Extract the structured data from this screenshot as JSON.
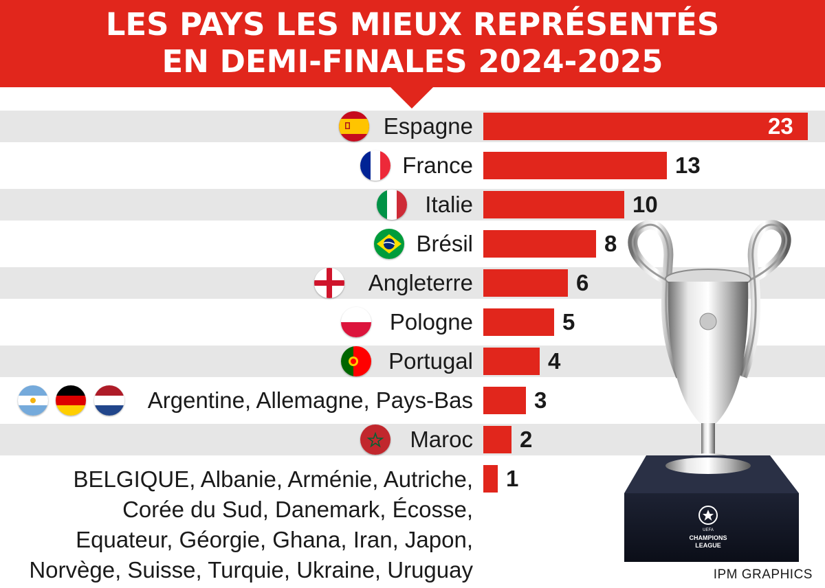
{
  "header": {
    "title_line1": "LES PAYS LES MIEUX REPRÉSENTÉS",
    "title_line2": "EN DEMI-FINALES 2024-2025",
    "color": "#e1261c"
  },
  "chart_data": {
    "type": "bar",
    "orientation": "horizontal",
    "categories": [
      "Espagne",
      "France",
      "Italie",
      "Brésil",
      "Angleterre",
      "Pologne",
      "Portugal",
      "Argentine, Allemagne, Pays-Bas",
      "Maroc",
      "BELGIQUE, Albanie, Arménie, Autriche, Corée du Sud,  Danemark, Écosse, Equateur, Géorgie, Ghana, Iran, Japon, Norvège, Suisse, Turquie, Ukraine, Uruguay"
    ],
    "values": [
      23,
      13,
      10,
      8,
      6,
      5,
      4,
      3,
      2,
      1
    ],
    "bar_color": "#e1261c",
    "grid": false
  },
  "rows": [
    {
      "label": "Espagne",
      "value": "23",
      "flags": [
        "spain-flag-icon"
      ]
    },
    {
      "label": "France",
      "value": "13",
      "flags": [
        "france-flag-icon"
      ]
    },
    {
      "label": "Italie",
      "value": "10",
      "flags": [
        "italy-flag-icon"
      ]
    },
    {
      "label": "Brésil",
      "value": "8",
      "flags": [
        "brazil-flag-icon"
      ]
    },
    {
      "label": "Angleterre",
      "value": "6",
      "flags": [
        "england-flag-icon"
      ]
    },
    {
      "label": "Pologne",
      "value": "5",
      "flags": [
        "poland-flag-icon"
      ]
    },
    {
      "label": "Portugal",
      "value": "4",
      "flags": [
        "portugal-flag-icon"
      ]
    },
    {
      "label": "Argentine, Allemagne, Pays-Bas",
      "value": "3",
      "flags": [
        "argentina-flag-icon",
        "germany-flag-icon",
        "netherlands-flag-icon"
      ]
    },
    {
      "label": "Maroc",
      "value": "2",
      "flags": [
        "morocco-flag-icon"
      ]
    },
    {
      "label": "",
      "value": "1",
      "flags": []
    }
  ],
  "others": {
    "line1": "BELGIQUE, Albanie, Arménie, Autriche,",
    "line2": "Corée du Sud,  Danemark, Écosse,",
    "line3": "Equateur, Géorgie, Ghana, Iran, Japon,",
    "line4": "Norvège, Suisse, Turquie, Ukraine, Uruguay"
  },
  "trophy": {
    "icon": "champions-league-trophy-icon",
    "base_text_line1": "CHAMPIONS",
    "base_text_line2": "LEAGUE",
    "base_small": "UEFA"
  },
  "credit": "IPM GRAPHICS"
}
